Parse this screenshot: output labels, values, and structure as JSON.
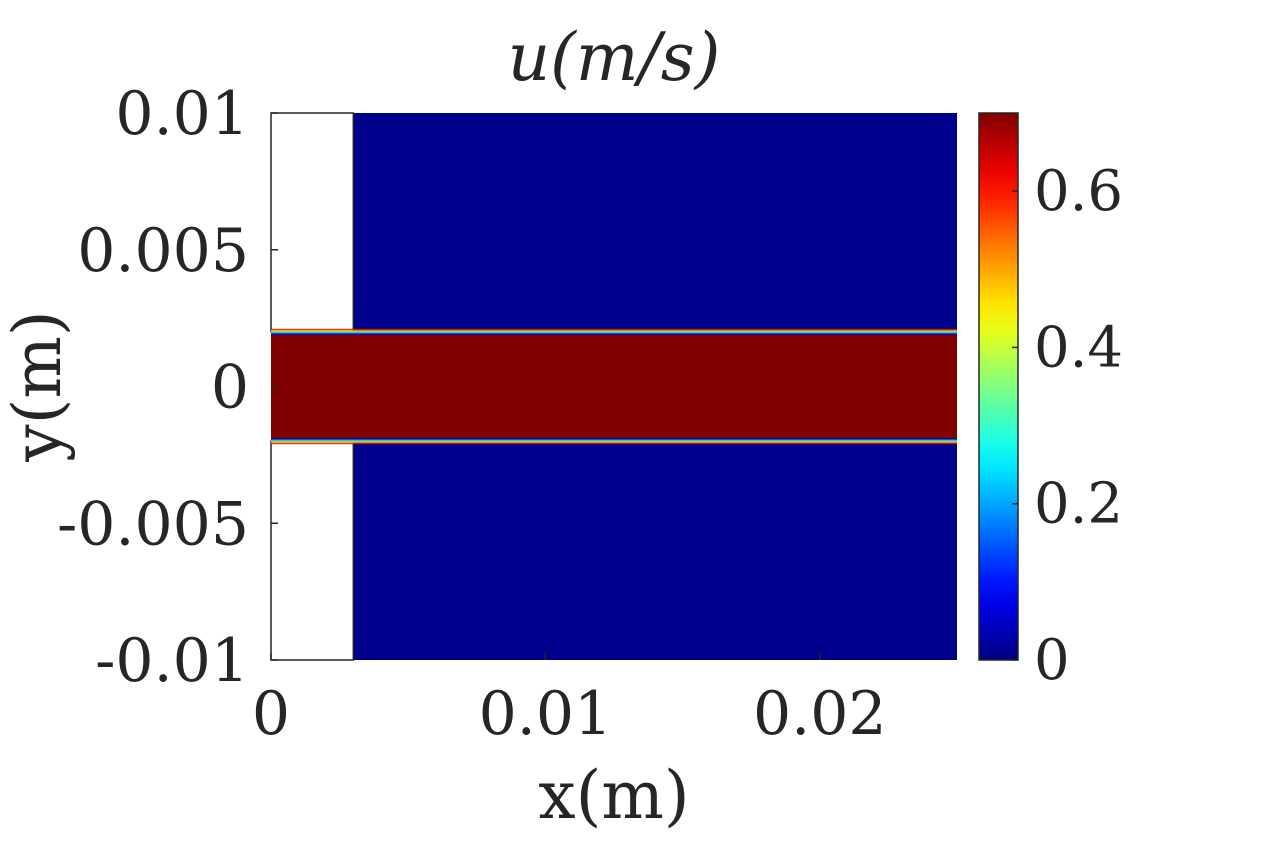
{
  "chart_data": {
    "type": "heatmap",
    "title": "u(m/s)",
    "xlabel": "x(m)",
    "ylabel": "y(m)",
    "xlim": [
      0,
      0.025
    ],
    "ylim": [
      -0.01,
      0.01
    ],
    "x_ticks": [
      {
        "value": 0,
        "label": "0"
      },
      {
        "value": 0.01,
        "label": "0.01"
      },
      {
        "value": 0.02,
        "label": "0.02"
      }
    ],
    "y_ticks": [
      {
        "value": 0.01,
        "label": "0.01"
      },
      {
        "value": 0.005,
        "label": "0.005"
      },
      {
        "value": 0,
        "label": "0"
      },
      {
        "value": -0.005,
        "label": "-0.005"
      },
      {
        "value": -0.01,
        "label": "-0.01"
      }
    ],
    "colormap": "jet",
    "colorbar": {
      "range": [
        0,
        0.7
      ],
      "ticks": [
        {
          "value": 0,
          "label": "0"
        },
        {
          "value": 0.2,
          "label": "0.2"
        },
        {
          "value": 0.4,
          "label": "0.4"
        },
        {
          "value": 0.6,
          "label": "0.6"
        }
      ]
    },
    "field": {
      "empty_region": {
        "x": [
          0,
          0.003
        ],
        "y_outside_jet": true
      },
      "jet_band": {
        "y": [
          -0.002,
          0.002
        ],
        "x": [
          0,
          0.025
        ],
        "u": 0.7
      },
      "background_u": 0
    },
    "grid": false
  },
  "colors": {
    "jet_high": "#800000",
    "field_low": "#00008f",
    "axis": "#262626",
    "background": "#ffffff"
  }
}
